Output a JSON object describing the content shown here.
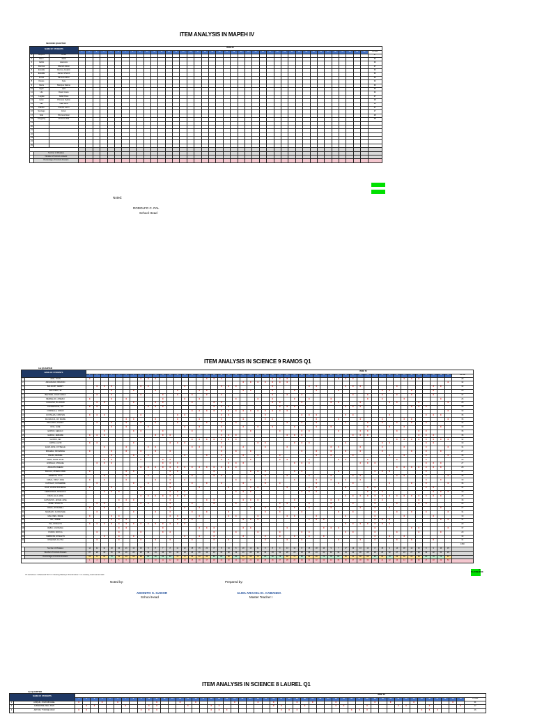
{
  "section1": {
    "title": "ITEM ANALYSIS IN MAPEH IV",
    "quarter": "SECOND QUARTER",
    "name_header": "NAME OF STUDENTS",
    "item_header": "ITEM=40",
    "total_header": "TOTAL",
    "item_count": 40,
    "students": [
      {
        "no": "1",
        "last": "Acquino",
        "first": "Alfred",
        "total": "27"
      },
      {
        "no": "2",
        "last": "Barro",
        "first": "Jaslet",
        "total": "32"
      },
      {
        "no": "3",
        "last": "Calibo",
        "first": "Lawrence",
        "total": "30"
      },
      {
        "no": "4",
        "last": "Demma",
        "first": "Sherwin Glenn",
        "total": "27"
      },
      {
        "no": "5",
        "last": "Escalda",
        "first": "Renzey Josphin",
        "total": "33"
      },
      {
        "no": "6",
        "last": "Escalda",
        "first": "Jannes Vincent",
        "total": "32"
      },
      {
        "no": "7",
        "last": "Fortes",
        "first": "Samuel Adrien",
        "total": "33"
      },
      {
        "no": "8",
        "last": "Ibretes",
        "first": "Kyla",
        "total": "33"
      },
      {
        "no": "9",
        "last": "Ibarra",
        "first": "Monique Dalene",
        "total": "30"
      },
      {
        "no": "10",
        "last": "Ingan",
        "first": "Lylia",
        "total": "30"
      },
      {
        "no": "11",
        "last": "Lilo",
        "first": "Dawn Grace",
        "total": "32"
      },
      {
        "no": "12",
        "last": "Logata",
        "first": "Jellah Rose",
        "total": "27"
      },
      {
        "no": "13",
        "last": "Lalan",
        "first": "Princess Sydnie",
        "total": "28"
      },
      {
        "no": "14",
        "last": "Ilao",
        "first": "Nikki Lena",
        "total": "29"
      },
      {
        "no": "15",
        "last": "Pablico",
        "first": "Francis Loren",
        "total": "27"
      },
      {
        "no": "16",
        "last": "Santiago",
        "first": "Erwin",
        "total": "27"
      },
      {
        "no": "17",
        "last": "Sola",
        "first": "Princess Deon",
        "total": "28"
      },
      {
        "no": "18",
        "last": "Yangyang",
        "first": "Precious Sha",
        "total": "28"
      },
      {
        "no": "19",
        "last": "",
        "first": "",
        "total": ""
      },
      {
        "no": "20",
        "last": "",
        "first": "",
        "total": ""
      },
      {
        "no": "21",
        "last": "",
        "first": "",
        "total": ""
      },
      {
        "no": "22",
        "last": "",
        "first": "",
        "total": ""
      },
      {
        "no": "23",
        "last": "",
        "first": "",
        "total": ""
      },
      {
        "no": "24",
        "last": "",
        "first": "",
        "total": ""
      },
      {
        "no": "25",
        "last": "",
        "first": "",
        "total": ""
      }
    ],
    "summary_rows": [
      "Number of Mistakes",
      "Number of Correct answers",
      "Percentage of Correct Answers"
    ],
    "noted_label": "Noted:",
    "signatory_name": "RODOLFO C. PAL",
    "signatory_title": "School Head"
  },
  "section2": {
    "title": "ITEM ANALYSIS IN SCIENCE 9 RAMOS Q1",
    "quarter": "1st QUARTER",
    "name_header": "NAME OF STUDENTS",
    "item_header": "ITEM: 50",
    "total_header": "TOTAL",
    "item_count": 50,
    "students": [
      "ABIC, RYAN",
      "ARGUMANO, BRAXON",
      "BALAGUIT, GERRY",
      "BALCOBA, LEI",
      "BELTRAN, JOHN CARLO",
      "BERNALDO, JOSEPH",
      "CAVALINO, BIL DAVID",
      "CONCEPCION, JAY",
      "CORNELLA, JONAS",
      "COSTALES, CRISTIAN",
      "DE GRACIA, JAY MARIE",
      "DELGADO, ASHLEY",
      "DIVA, JADE",
      "ESPIDO, GERALD",
      "GARCIA, JERIAME",
      "GLORIO, KEI",
      "JAPINA, ALVIN",
      "ELIZA FAYE, JOYSELLE",
      "MICHAEL, NATHANIEL",
      "PALMA, DENUEL",
      "PERA, MARK JOHN",
      "ANDUELA, MICHAEL",
      "ARAGON, RHEAM",
      "BACALA, ATHENA JANE",
      "JAMENTE, KYLA",
      "CABAL, DIMLY JANE",
      "CASTALAT, KATHERINE",
      "DIAZ, VIANNA KATHRINA",
      "FERNANDEZ, ANGELICA",
      "FRIAS, ELLA JADE",
      "GATMAITAN, JESSIE JANE",
      "JAIME, JOVELYN",
      "JOSOL, ROXANELL",
      "MALBAZO, FLORA MAE",
      "MALONES, IRENE",
      "MIL, JOBEE",
      "PAL, ROSALYN",
      "REBU, LOUISIANA",
      "PUROK, MIKYLA",
      "SIMPAYAN, ROSALYN",
      "VASQUEZ, ALLYSA"
    ],
    "totals": [
      "28",
      "32",
      "32",
      "20",
      "37",
      "26",
      "28",
      "30",
      "33",
      "35",
      "35",
      "32",
      "33",
      "35",
      "35",
      "32",
      "30",
      "34",
      "27",
      "35",
      "29",
      "27",
      "28",
      "37",
      "35",
      "30",
      "36",
      "31",
      "30",
      "28",
      "38",
      "26",
      "27",
      "34",
      "30",
      "31",
      "29",
      "37",
      "29",
      "33",
      "31"
    ],
    "sum_total": "1350",
    "summary_rows": [
      "Number of Mistakes",
      "Number of Correct Answers",
      "Percentage of Correct Answers"
    ],
    "mistakes": [
      "14",
      "12",
      "11",
      "10",
      "20",
      "21",
      "13",
      "13",
      "8",
      "8",
      "7",
      "8",
      "11",
      "12",
      "15",
      "15",
      "22",
      "8",
      "8",
      "13",
      "8",
      "20",
      "13",
      "11",
      "8",
      "8",
      "9",
      "13",
      "12",
      "8",
      "15",
      "18",
      "10",
      "9",
      "7",
      "17",
      "19",
      "13",
      "13",
      "8",
      "15",
      "9",
      "14",
      "18",
      "14",
      "15",
      "8",
      "9",
      "10",
      "15"
    ],
    "correct": [
      "27",
      "29",
      "30",
      "31",
      "21",
      "20",
      "28",
      "28",
      "33",
      "33",
      "34",
      "33",
      "30",
      "29",
      "26",
      "26",
      "19",
      "33",
      "33",
      "28",
      "33",
      "21",
      "28",
      "30",
      "33",
      "33",
      "32",
      "28",
      "29",
      "33",
      "26",
      "23",
      "31",
      "32",
      "34",
      "24",
      "22",
      "28",
      "28",
      "33",
      "26",
      "32",
      "27",
      "23",
      "27",
      "26",
      "33",
      "32",
      "31",
      "26"
    ],
    "percent": [
      "66",
      "71",
      "66",
      "76",
      "52",
      "49",
      "68",
      "68",
      "80",
      "80",
      "83",
      "80",
      "73",
      "71",
      "63",
      "63",
      "46",
      "80",
      "80",
      "68",
      "80",
      "51",
      "68",
      "73",
      "80",
      "80",
      "78",
      "68",
      "71",
      "80",
      "63",
      "56",
      "76",
      "78",
      "83",
      "59",
      "54",
      "68",
      "68",
      "80",
      "63",
      "78",
      "66",
      "56",
      "66",
      "63",
      "80",
      "78",
      "76",
      "63"
    ],
    "pass_label": "PLAYABLE/SE",
    "pass_value": "0",
    "note": "75 and above = Mastered/ 50-74 = Nearing Mastery/ 49 and below = no mastery, least learned skill",
    "noted_label": "Noted by:",
    "prepared_label": "Prepared by:",
    "head_name": "ADONITO S. GADOR",
    "head_title": "School Head",
    "teacher_name": "ALMA ARACELI K. CABANDA",
    "teacher_title": "Master Teacher I"
  },
  "section3": {
    "title": "ITEM ANALYSIS IN SCIENCE 8 LAUREL Q1",
    "quarter": "1st QUARTER",
    "name_header": "NAME OF STUDENTS",
    "item_header": "ITEM: 50",
    "total_header": "TOTAL",
    "item_count": 50,
    "students": [
      "ANIQUE, JOHN MICHAEL",
      "ALBARAMIE, MEL JOHN",
      "ANTONI, TYRONE CRUZ"
    ],
    "totals": [
      "31",
      "27",
      "26"
    ]
  },
  "colors": {
    "header_navy": "#1f3864",
    "item_blue": "#4472c4",
    "mark_red": "#e00000",
    "summary_gray": "#d9d9d9",
    "percent_pink": "#f4c7cf",
    "mastered_green": "#c6efce",
    "nearing_yellow": "#ffe699",
    "pass_green": "#00e000",
    "signature_blue": "#1f4e9b"
  }
}
